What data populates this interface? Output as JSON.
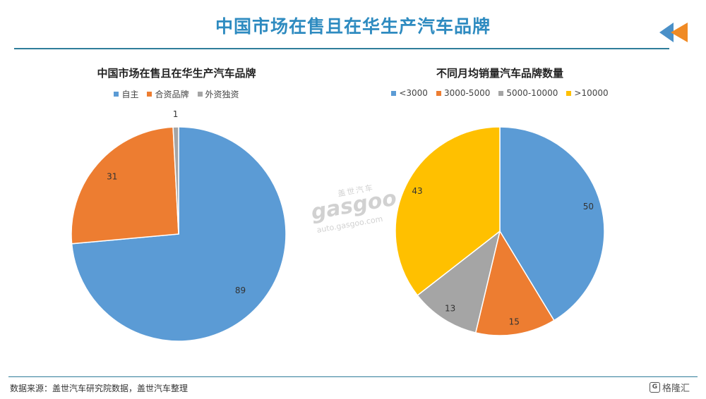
{
  "page": {
    "title": "中国市场在售且在华生产汽车品牌",
    "source": "数据来源：盖世汽车研究院数据，盖世汽车整理",
    "watermark": {
      "brand": "gasgoo",
      "cn": "盖世汽车",
      "url": "auto.gasgoo.com"
    },
    "footer_logo": "格隆汇",
    "footer_logo_mark": "G"
  },
  "colors": {
    "blue": "#5B9BD5",
    "orange": "#ED7D31",
    "gray": "#A5A5A5",
    "yellow": "#FFC000",
    "title": "#2E8BC0",
    "rule": "#2E7D9A"
  },
  "chart_data": [
    {
      "type": "pie",
      "title": "中国市场在售且在华生产汽车品牌",
      "legend_position": "top",
      "categories": [
        "自主",
        "合资品牌",
        "外资独资"
      ],
      "values": [
        89,
        31,
        1
      ],
      "colors": [
        "#5B9BD5",
        "#ED7D31",
        "#A5A5A5"
      ]
    },
    {
      "type": "pie",
      "title": "不同月均销量汽车品牌数量",
      "legend_position": "top",
      "categories": [
        "<3000",
        "3000-5000",
        "5000-10000",
        ">10000"
      ],
      "values": [
        50,
        15,
        13,
        43
      ],
      "colors": [
        "#5B9BD5",
        "#ED7D31",
        "#A5A5A5",
        "#FFC000"
      ]
    }
  ]
}
